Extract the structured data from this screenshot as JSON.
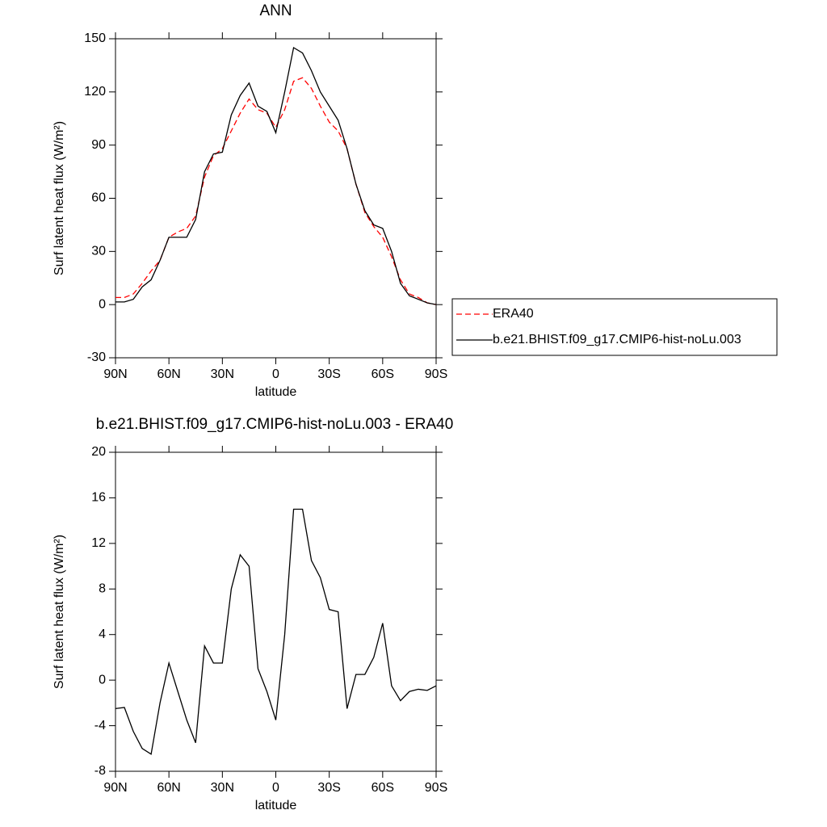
{
  "chart_data": [
    {
      "type": "line",
      "title": "ANN",
      "xlabel": "latitude",
      "ylabel": "Surf latent heat flux (W/m²)",
      "x": [
        90,
        85,
        80,
        75,
        70,
        65,
        60,
        55,
        50,
        45,
        40,
        35,
        30,
        25,
        20,
        15,
        10,
        5,
        0,
        -5,
        -10,
        -15,
        -20,
        -25,
        -30,
        -35,
        -40,
        -45,
        -50,
        -55,
        -60,
        -65,
        -70,
        -75,
        -80,
        -85,
        -90
      ],
      "xlim": [
        90,
        -90
      ],
      "xticks": [
        {
          "value": 90,
          "label": "90N"
        },
        {
          "value": 60,
          "label": "60N"
        },
        {
          "value": 30,
          "label": "30N"
        },
        0,
        {
          "value": -30,
          "label": "30S"
        },
        {
          "value": -60,
          "label": "60S"
        },
        {
          "value": -90,
          "label": "90S"
        }
      ],
      "ylim": [
        -30,
        150
      ],
      "yticks": [
        -30,
        0,
        30,
        60,
        90,
        120,
        150
      ],
      "legend_position": "right",
      "series": [
        {
          "name": "ERA40",
          "color": "#ff0000",
          "dashed": true,
          "values": [
            4,
            4,
            6,
            12,
            19,
            25,
            38,
            41,
            43,
            50,
            72,
            84,
            88,
            98,
            108,
            116,
            110,
            108,
            100,
            110,
            126,
            128,
            122,
            112,
            103,
            98,
            88,
            68,
            52,
            44,
            38,
            27,
            14,
            6,
            4,
            1,
            0
          ]
        },
        {
          "name": "b.e21.BHIST.f09_g17.CMIP6-hist-noLu.003",
          "color": "#000000",
          "dashed": false,
          "values": [
            1.5,
            1.5,
            3,
            10,
            14,
            25,
            38,
            38,
            38,
            48,
            75,
            85,
            86,
            107,
            118,
            125,
            112,
            109,
            97,
            120,
            145,
            142,
            132,
            120,
            112,
            104,
            88,
            68,
            53,
            45,
            43,
            30,
            12,
            5,
            3,
            1,
            0
          ]
        }
      ]
    },
    {
      "type": "line",
      "title": "b.e21.BHIST.f09_g17.CMIP6-hist-noLu.003 - ERA40",
      "xlabel": "latitude",
      "ylabel": "Surf latent heat flux (W/m²)",
      "x": [
        90,
        85,
        80,
        75,
        70,
        65,
        60,
        55,
        50,
        45,
        40,
        35,
        30,
        25,
        20,
        15,
        10,
        5,
        0,
        -5,
        -10,
        -15,
        -20,
        -25,
        -30,
        -35,
        -40,
        -45,
        -50,
        -55,
        -60,
        -65,
        -70,
        -75,
        -80,
        -85,
        -90
      ],
      "xlim": [
        90,
        -90
      ],
      "xticks": [
        {
          "value": 90,
          "label": "90N"
        },
        {
          "value": 60,
          "label": "60N"
        },
        {
          "value": 30,
          "label": "30N"
        },
        0,
        {
          "value": -30,
          "label": "30S"
        },
        {
          "value": -60,
          "label": "60S"
        },
        {
          "value": -90,
          "label": "90S"
        }
      ],
      "ylim": [
        -8,
        20
      ],
      "yticks": [
        -8,
        -4,
        0,
        4,
        8,
        12,
        16,
        20
      ],
      "series": [
        {
          "color": "#000000",
          "dashed": false,
          "values": [
            -2.5,
            -2.4,
            -4.5,
            -6,
            -6.5,
            -2,
            1.5,
            -1,
            -3.5,
            -5.5,
            3,
            1.5,
            1.5,
            8,
            11,
            10,
            1,
            -1,
            -3.5,
            4,
            15,
            15,
            10.5,
            9,
            6.2,
            6,
            -2.5,
            0.5,
            0.5,
            2,
            5,
            -0.5,
            -1.8,
            -1,
            -0.8,
            -0.9,
            -0.5
          ]
        }
      ]
    }
  ]
}
